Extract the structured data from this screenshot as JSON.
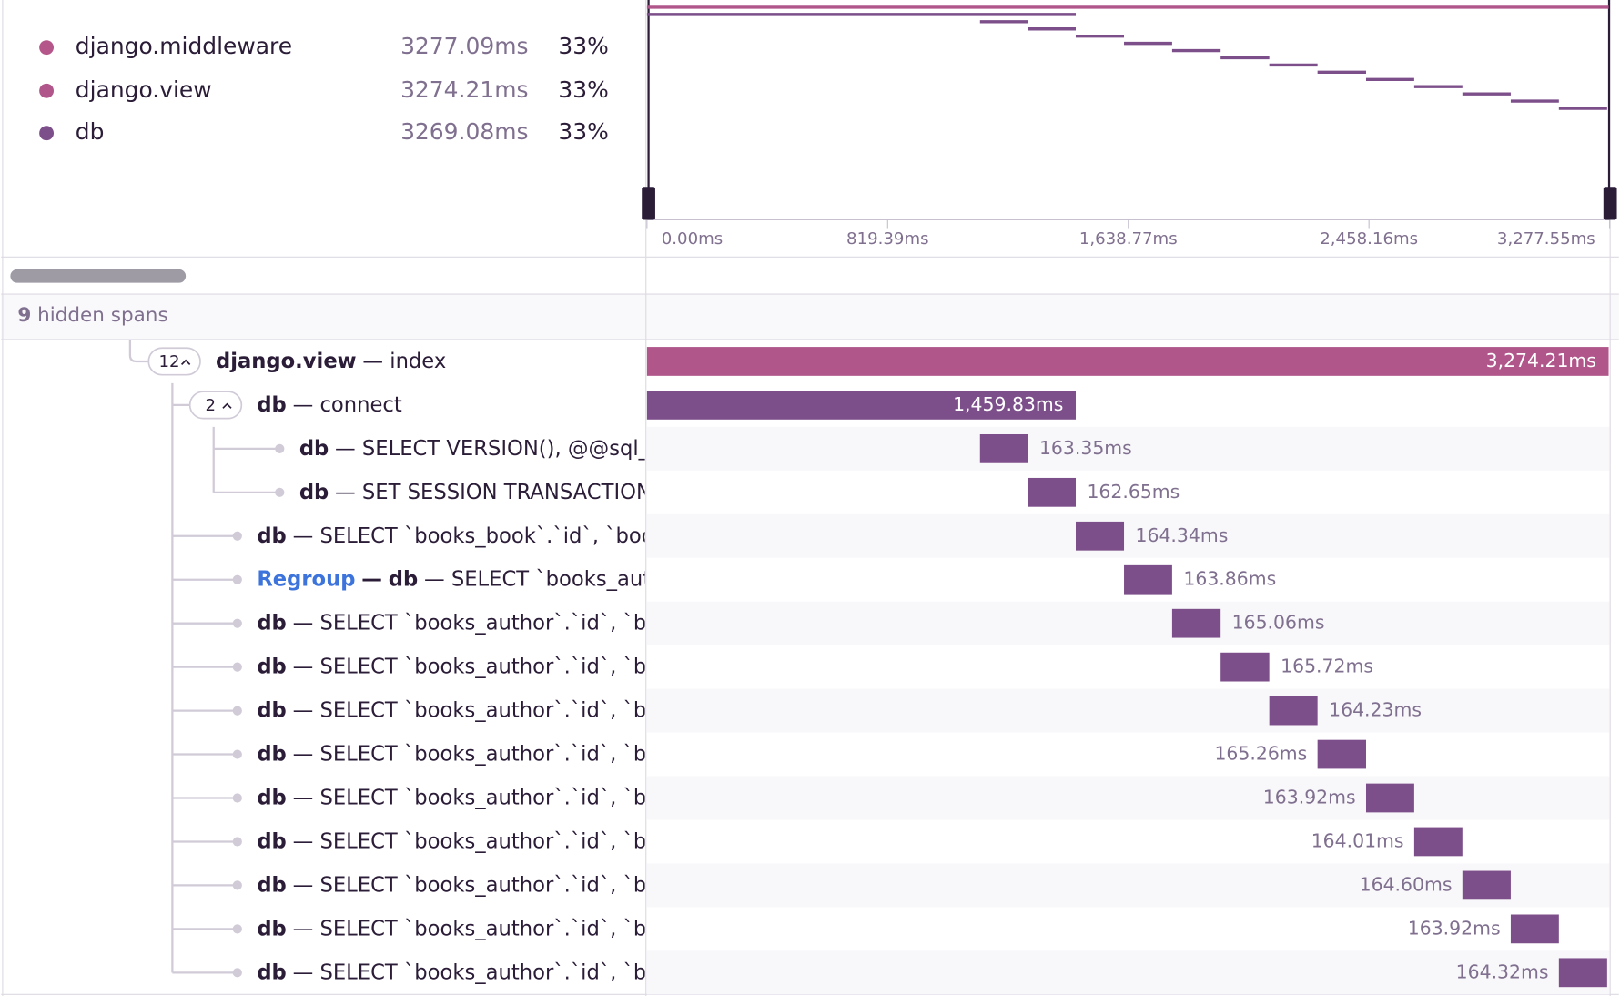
{
  "legend": [
    {
      "name": "django.middleware",
      "duration": "3277.09ms",
      "percent": "33%",
      "color": "#b5568a"
    },
    {
      "name": "django.view",
      "duration": "3274.21ms",
      "percent": "33%",
      "color": "#b0568a"
    },
    {
      "name": "db",
      "duration": "3269.08ms",
      "percent": "33%",
      "color": "#7d4f8a"
    }
  ],
  "axis": {
    "xlim": [
      0,
      3277.55
    ],
    "ticks": [
      {
        "value": 0,
        "label": "0.00ms"
      },
      {
        "value": 819.39,
        "label": "819.39ms"
      },
      {
        "value": 1638.77,
        "label": "1,638.77ms"
      },
      {
        "value": 2458.16,
        "label": "2,458.16ms"
      },
      {
        "value": 3277.55,
        "label": "3,277.55ms"
      }
    ]
  },
  "hidden": {
    "count": "9",
    "text": "hidden spans"
  },
  "rows": [
    {
      "count": "12",
      "op": "django.view",
      "text": "— index",
      "start_ms": 0,
      "duration_ms": 3274.21,
      "duration_label": "3,274.21ms"
    },
    {
      "count": "2",
      "op": "db",
      "text": "— connect",
      "start_ms": 0,
      "duration_ms": 1459.83,
      "duration_label": "1,459.83ms"
    },
    {
      "op": "db",
      "text": "— SELECT VERSION(), @@sql_m",
      "start_ms": 1133.83,
      "duration_ms": 163.35,
      "duration_label": "163.35ms"
    },
    {
      "op": "db",
      "text": "— SET SESSION TRANSACTION",
      "start_ms": 1297.18,
      "duration_ms": 162.65,
      "duration_label": "162.65ms"
    },
    {
      "op": "db",
      "text": "— SELECT `books_book`.`id`, `books",
      "start_ms": 1459.83,
      "duration_ms": 164.34,
      "duration_label": "164.34ms"
    },
    {
      "tag": "Regroup",
      "tag_sep": "—",
      "op": "db",
      "text": "— SELECT `books_auth",
      "start_ms": 1624.17,
      "duration_ms": 163.86,
      "duration_label": "163.86ms"
    },
    {
      "op": "db",
      "text": "— SELECT `books_author`.`id`, `boo",
      "start_ms": 1788.03,
      "duration_ms": 165.06,
      "duration_label": "165.06ms"
    },
    {
      "op": "db",
      "text": "— SELECT `books_author`.`id`, `boo",
      "start_ms": 1953.09,
      "duration_ms": 165.72,
      "duration_label": "165.72ms"
    },
    {
      "op": "db",
      "text": "— SELECT `books_author`.`id`, `boo",
      "start_ms": 2118.81,
      "duration_ms": 164.23,
      "duration_label": "164.23ms"
    },
    {
      "op": "db",
      "text": "— SELECT `books_author`.`id`, `boo",
      "start_ms": 2283.04,
      "duration_ms": 165.26,
      "duration_label": "165.26ms"
    },
    {
      "op": "db",
      "text": "— SELECT `books_author`.`id`, `boo",
      "start_ms": 2448.3,
      "duration_ms": 163.92,
      "duration_label": "163.92ms"
    },
    {
      "op": "db",
      "text": "— SELECT `books_author`.`id`, `boo",
      "start_ms": 2612.22,
      "duration_ms": 164.01,
      "duration_label": "164.01ms"
    },
    {
      "op": "db",
      "text": "— SELECT `books_author`.`id`, `boo",
      "start_ms": 2776.23,
      "duration_ms": 164.6,
      "duration_label": "164.60ms"
    },
    {
      "op": "db",
      "text": "— SELECT `books_author`.`id`, `boo",
      "start_ms": 2940.83,
      "duration_ms": 163.92,
      "duration_label": "163.92ms"
    },
    {
      "op": "db",
      "text": "— SELECT `books_author`.`id`, `boo",
      "start_ms": 3104.75,
      "duration_ms": 164.32,
      "duration_label": "164.32ms"
    }
  ]
}
